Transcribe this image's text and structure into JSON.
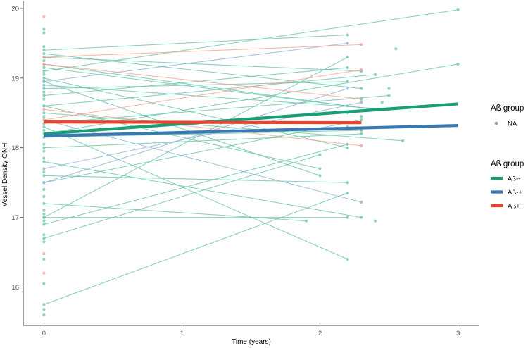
{
  "chart_data": {
    "type": "line",
    "title": "",
    "xlabel": "Time (years)",
    "ylabel": "Vessel Density ONH",
    "xlim": [
      -0.15,
      3.15
    ],
    "ylim": [
      15.45,
      20.1
    ],
    "x_ticks": [
      0,
      1,
      2,
      3
    ],
    "y_ticks": [
      16,
      17,
      18,
      19,
      20
    ],
    "grid": false,
    "legend_placement": "right",
    "colors": {
      "Aß--": "#1a9e76",
      "Aß-+": "#3a78b3",
      "Aß++": "#e8452c",
      "individual_green": "#66c2a5",
      "individual_blue": "#8fb2d6",
      "individual_red": "#f4a090",
      "NA_point": "#7a7a7a"
    },
    "legend_points": {
      "title": "Aß group",
      "entries": [
        "NA"
      ]
    },
    "legend_lines": {
      "title": "Aß group",
      "entries": [
        "Aß--",
        "Aß-+",
        "Aß++"
      ]
    },
    "series": [
      {
        "name": "Aß--",
        "x": [
          0,
          3
        ],
        "values": [
          18.2,
          18.63
        ]
      },
      {
        "name": "Aß-+",
        "x": [
          0,
          3
        ],
        "values": [
          18.17,
          18.32
        ]
      },
      {
        "name": "Aß++",
        "x": [
          0,
          2.3
        ],
        "values": [
          18.37,
          18.36
        ]
      }
    ],
    "individual_trajectories": [
      {
        "group": "Aß--",
        "x": [
          0,
          3
        ],
        "y": [
          19.1,
          19.98
        ]
      },
      {
        "group": "Aß--",
        "x": [
          0,
          3
        ],
        "y": [
          18.2,
          19.2
        ]
      },
      {
        "group": "Aß--",
        "x": [
          0,
          2.2
        ],
        "y": [
          15.75,
          17.35
        ]
      },
      {
        "group": "Aß--",
        "x": [
          0,
          2.2
        ],
        "y": [
          18.3,
          16.4
        ]
      },
      {
        "group": "Aß--",
        "x": [
          0,
          2.2
        ],
        "y": [
          19.4,
          19.62
        ]
      },
      {
        "group": "Aß--",
        "x": [
          0,
          2.3
        ],
        "y": [
          19.3,
          19.1
        ]
      },
      {
        "group": "Aß--",
        "x": [
          0,
          2.2
        ],
        "y": [
          17.0,
          17.0
        ]
      },
      {
        "group": "Aß--",
        "x": [
          0,
          2.0
        ],
        "y": [
          16.7,
          17.9
        ]
      },
      {
        "group": "Aß--",
        "x": [
          0,
          2.3
        ],
        "y": [
          17.5,
          18.4
        ]
      },
      {
        "group": "Aß--",
        "x": [
          0,
          1.9
        ],
        "y": [
          17.2,
          16.95
        ]
      },
      {
        "group": "Aß--",
        "x": [
          0,
          2.5
        ],
        "y": [
          18.9,
          18.55
        ]
      },
      {
        "group": "Aß--",
        "x": [
          0,
          2.6
        ],
        "y": [
          18.5,
          18.1
        ]
      },
      {
        "group": "Aß--",
        "x": [
          0,
          2.2
        ],
        "y": [
          19.0,
          18.0
        ]
      },
      {
        "group": "Aß--",
        "x": [
          0,
          2.3
        ],
        "y": [
          17.8,
          17.0
        ]
      },
      {
        "group": "Aß--",
        "x": [
          0,
          2.4
        ],
        "y": [
          18.6,
          19.05
        ]
      },
      {
        "group": "Aß--",
        "x": [
          0,
          2.2
        ],
        "y": [
          19.2,
          18.6
        ]
      },
      {
        "group": "Aß--",
        "x": [
          0,
          2.3
        ],
        "y": [
          18.0,
          18.2
        ]
      },
      {
        "group": "Aß--",
        "x": [
          0,
          2.2
        ],
        "y": [
          17.0,
          19.3
        ]
      },
      {
        "group": "Aß--",
        "x": [
          0,
          2.0
        ],
        "y": [
          18.6,
          17.7
        ]
      },
      {
        "group": "Aß--",
        "x": [
          0,
          2.2
        ],
        "y": [
          18.85,
          18.95
        ]
      },
      {
        "group": "Aß--",
        "x": [
          0,
          2.3
        ],
        "y": [
          19.35,
          18.85
        ]
      },
      {
        "group": "Aß--",
        "x": [
          0,
          2.2
        ],
        "y": [
          16.9,
          18.05
        ]
      },
      {
        "group": "Aß--",
        "x": [
          0,
          2.5
        ],
        "y": [
          18.35,
          18.75
        ]
      },
      {
        "group": "Aß--",
        "x": [
          0,
          2.3
        ],
        "y": [
          18.15,
          18.25
        ]
      },
      {
        "group": "Aß--",
        "x": [
          0,
          2.2
        ],
        "y": [
          17.6,
          17.5
        ]
      },
      {
        "group": "Aß--",
        "x": [
          0,
          2.0
        ],
        "y": [
          18.95,
          17.6
        ]
      },
      {
        "group": "Aß--",
        "x": [
          0,
          2.4
        ],
        "y": [
          19.15,
          18.55
        ]
      },
      {
        "group": "Aß--",
        "x": [
          0,
          2.2
        ],
        "y": [
          18.75,
          19.15
        ]
      },
      {
        "group": "Aß-+",
        "x": [
          0,
          2.2
        ],
        "y": [
          17.5,
          18.85
        ]
      },
      {
        "group": "Aß-+",
        "x": [
          0,
          2.3
        ],
        "y": [
          18.4,
          17.22
        ]
      },
      {
        "group": "Aß-+",
        "x": [
          0,
          2.2
        ],
        "y": [
          18.95,
          19.5
        ]
      },
      {
        "group": "Aß-+",
        "x": [
          0,
          2.3
        ],
        "y": [
          17.7,
          18.65
        ]
      },
      {
        "group": "Aß++",
        "x": [
          0,
          2.3
        ],
        "y": [
          19.3,
          19.48
        ]
      },
      {
        "group": "Aß++",
        "x": [
          0,
          2.3
        ],
        "y": [
          19.2,
          18.7
        ]
      },
      {
        "group": "Aß++",
        "x": [
          0,
          2.3
        ],
        "y": [
          18.55,
          18.03
        ]
      },
      {
        "group": "Aß++",
        "x": [
          0,
          2.3
        ],
        "y": [
          18.4,
          19.12
        ]
      }
    ],
    "extra_baseline_points": [
      {
        "group": "Aß--",
        "y": [
          19.7,
          19.65,
          19.45,
          19.25,
          19.05,
          18.8,
          18.7,
          18.45,
          18.25,
          18.05,
          17.95,
          17.85,
          17.65,
          17.4,
          17.3,
          17.1,
          17.05,
          16.95,
          16.75,
          16.65,
          16.4,
          16.05,
          15.68,
          15.6
        ]
      },
      {
        "group": "Aß++",
        "y": [
          19.88,
          16.48,
          16.2
        ]
      }
    ],
    "extra_followup_points": [
      {
        "group": "Aß--",
        "x": [
          2.55,
          2.4,
          2.5,
          2.45,
          2.2,
          2.3,
          2.2,
          2.3
        ],
        "y": [
          19.42,
          16.95,
          18.85,
          18.65,
          18.5,
          18.7,
          18.3,
          18.45
        ]
      }
    ]
  }
}
